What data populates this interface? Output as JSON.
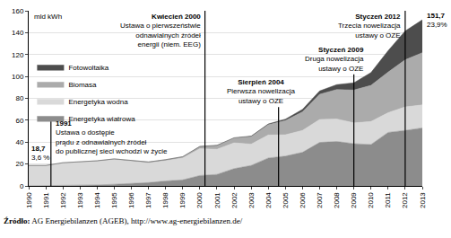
{
  "chart_data": {
    "type": "area",
    "stacked": true,
    "y_label": "mld kWh",
    "x": [
      1990,
      1991,
      1992,
      1993,
      1994,
      1995,
      1996,
      1997,
      1998,
      1999,
      2000,
      2001,
      2002,
      2003,
      2004,
      2005,
      2006,
      2007,
      2008,
      2009,
      2010,
      2011,
      2012,
      2013
    ],
    "xlim": [
      1990,
      2013
    ],
    "xticks": [
      1990,
      1991,
      1992,
      1993,
      1994,
      1995,
      1996,
      1997,
      1998,
      1999,
      2000,
      2001,
      2002,
      2003,
      2004,
      2005,
      2006,
      2007,
      2008,
      2009,
      2010,
      2011,
      2012,
      2013
    ],
    "ylim": [
      0,
      160
    ],
    "yticks": [
      0,
      20,
      40,
      60,
      80,
      100,
      120,
      140,
      160
    ],
    "grid": true,
    "legend": "top-left",
    "series": [
      {
        "name": "Energetyka wiatrowa",
        "color": "#8c8c8c",
        "values": [
          0.1,
          0.2,
          0.3,
          0.6,
          0.9,
          1.5,
          2.0,
          3.0,
          4.5,
          5.5,
          9.5,
          10.5,
          15.8,
          18.7,
          25.5,
          27.2,
          30.7,
          39.7,
          40.6,
          38.6,
          37.8,
          48.9,
          50.7,
          53.0
        ]
      },
      {
        "name": "Energetyka wodna",
        "color": "#d9d9d9",
        "values": [
          18.4,
          18.2,
          20.5,
          21.0,
          21.5,
          22.5,
          20.5,
          18.0,
          18.5,
          20.0,
          24.5,
          23.0,
          23.5,
          19.5,
          21.0,
          19.5,
          20.0,
          21.0,
          20.5,
          19.0,
          21.0,
          18.0,
          21.5,
          21.0
        ]
      },
      {
        "name": "Biomasa",
        "color": "#ababab",
        "values": [
          0.2,
          0.3,
          0.4,
          0.5,
          0.6,
          0.7,
          0.8,
          0.9,
          1.0,
          1.2,
          2.0,
          3.5,
          4.5,
          7.0,
          9.5,
          13.0,
          17.0,
          23.0,
          27.0,
          30.0,
          33.0,
          37.0,
          43.0,
          47.7
        ]
      },
      {
        "name": "Fotowoltaika",
        "color": "#4d4d4d",
        "values": [
          0,
          0,
          0,
          0,
          0,
          0,
          0,
          0,
          0,
          0,
          0.1,
          0.1,
          0.2,
          0.3,
          0.6,
          1.3,
          2.2,
          3.1,
          4.4,
          6.6,
          11.7,
          19.6,
          26.4,
          30.0
        ]
      }
    ],
    "end_labels": [
      {
        "x": 1990,
        "value": 18.7,
        "label": "18,7",
        "share_label": "3,6 %"
      },
      {
        "x": 2013,
        "value": 151.7,
        "label": "151,7",
        "share_label": "23,9%"
      }
    ],
    "annotations": [
      {
        "x": 1991.3,
        "label": "1991",
        "text": [
          "Ustawa o dostępie",
          "prądu z odnawialnych źródeł",
          "do publicznej sieci wchodzi w życie"
        ]
      },
      {
        "x": 2000.3,
        "label": "Kwiecień 2000",
        "text": [
          "Ustawa o pierwszeństwie",
          "odnawialnych źródeł",
          "energii (niem. EEG)"
        ]
      },
      {
        "x": 2004.6,
        "label": "Sierpień 2004",
        "text": [
          "Pierwsza nowelizacja",
          "ustawy o OZE"
        ]
      },
      {
        "x": 2009.0,
        "label": "Styczeń 2009",
        "text": [
          "Druga nowelizacja",
          "ustawy o OZE"
        ]
      },
      {
        "x": 2012.0,
        "label": "Styczeń 2012",
        "text": [
          "Trzecia nowelizacja",
          "ustawy o OZE"
        ]
      }
    ],
    "source_label": "Źródło:",
    "source": "AG Energiebilanzen (AGEB), http://www.ag-energiebilanzen.de/"
  }
}
